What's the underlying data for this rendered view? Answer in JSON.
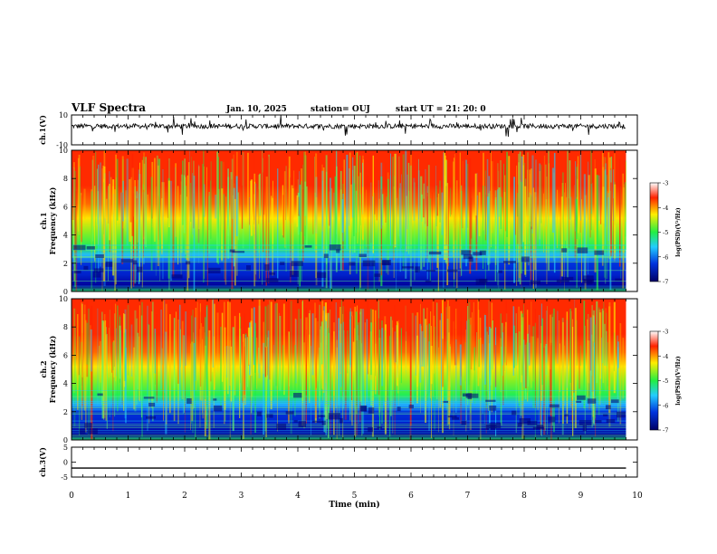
{
  "header": {
    "title": "VLF Spectra",
    "date": "Jan. 10, 2025",
    "station": "station= OUJ",
    "start": "start  UT =   21: 20: 0"
  },
  "chart_data": [
    {
      "type": "line",
      "name": "ch1-waveform",
      "ylabel": "ch.1(V)",
      "ylim": [
        -10,
        10
      ],
      "yticks": [
        "10",
        "-10"
      ],
      "trace_level": 2.5,
      "xlim": [
        0,
        10
      ]
    },
    {
      "type": "heatmap",
      "name": "ch1-spectrogram",
      "ylabel": "Frequency (kHz)",
      "channel_label": "ch.1",
      "ylim": [
        0,
        10
      ],
      "yticks": [
        "0",
        "2",
        "4",
        "6",
        "8",
        "10"
      ],
      "xlim": [
        0,
        9.8
      ],
      "colorbar": {
        "label": "log(PSD)(V²/Hz)",
        "ticks": [
          "-3",
          "-4",
          "-5",
          "-6",
          "-7"
        ],
        "range": [
          -7,
          -3
        ]
      }
    },
    {
      "type": "heatmap",
      "name": "ch2-spectrogram",
      "ylabel": "Frequency (kHz)",
      "channel_label": "ch.2",
      "ylim": [
        0,
        10
      ],
      "yticks": [
        "0",
        "2",
        "4",
        "6",
        "8",
        "10"
      ],
      "xlim": [
        0,
        9.8
      ],
      "colorbar": {
        "label": "log(PSD)(V²/Hz)",
        "ticks": [
          "-3",
          "-4",
          "-5",
          "-6",
          "-7"
        ],
        "range": [
          -7,
          -3
        ]
      }
    },
    {
      "type": "line",
      "name": "ch3-waveform",
      "ylabel": "ch.3(V)",
      "ylim": [
        -5,
        5
      ],
      "yticks": [
        "5",
        "0",
        "-5"
      ],
      "trace_level": -2.0,
      "xlim": [
        0,
        9.8
      ]
    }
  ],
  "xaxis": {
    "label": "Time (min)",
    "ticks": [
      "0",
      "1",
      "2",
      "3",
      "4",
      "5",
      "6",
      "7",
      "8",
      "9",
      "10"
    ],
    "range": [
      0,
      10
    ]
  },
  "colors": {
    "red": "#ff2200",
    "yellow": "#ffee00",
    "green": "#22ee44",
    "cyan": "#22ccff",
    "blue": "#0033dd",
    "navy": "#000088"
  }
}
